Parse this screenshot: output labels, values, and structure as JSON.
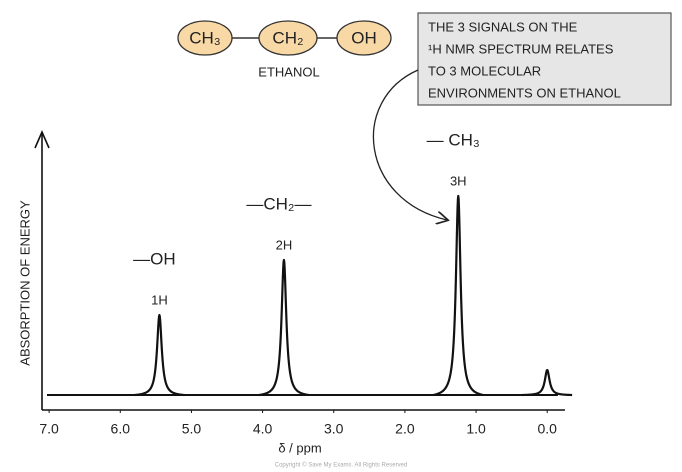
{
  "molecule": {
    "groups": [
      "CH₃",
      "CH₂",
      "OH"
    ],
    "name": "ETHANOL"
  },
  "note": {
    "lines": [
      "THE 3 SIGNALS ON THE",
      "¹H NMR  SPECTRUM  RELATES",
      "TO 3 MOLECULAR",
      "ENVIRONMENTS ON ETHANOL"
    ]
  },
  "chart_data": {
    "type": "spectrum",
    "xlabel": "δ / ppm",
    "ylabel": "ABSORPTION OF ENERGY",
    "xlim": [
      7.1,
      -0.25
    ],
    "ylim": [
      0,
      265
    ],
    "xticks": [
      {
        "value": 7,
        "label": "7.0"
      },
      {
        "value": 6,
        "label": "6.0"
      },
      {
        "value": 5,
        "label": "5.0"
      },
      {
        "value": 4,
        "label": "4.0"
      },
      {
        "value": 3,
        "label": "3.0"
      },
      {
        "value": 2,
        "label": "2.0"
      },
      {
        "value": 1,
        "label": "1.0"
      },
      {
        "value": 0,
        "label": "0.0"
      }
    ],
    "peaks": [
      {
        "x": 5.45,
        "height": 80,
        "label": "1H",
        "group": "—OH"
      },
      {
        "x": 3.7,
        "height": 135,
        "label": "2H",
        "group": "—CH₂—"
      },
      {
        "x": 1.25,
        "height": 199,
        "label": "3H",
        "group": "— CH₃"
      },
      {
        "x": 0.0,
        "height": 25
      }
    ],
    "color": "#111111"
  },
  "footer": "Copyright © Save My Exams. All Rights Reserved"
}
